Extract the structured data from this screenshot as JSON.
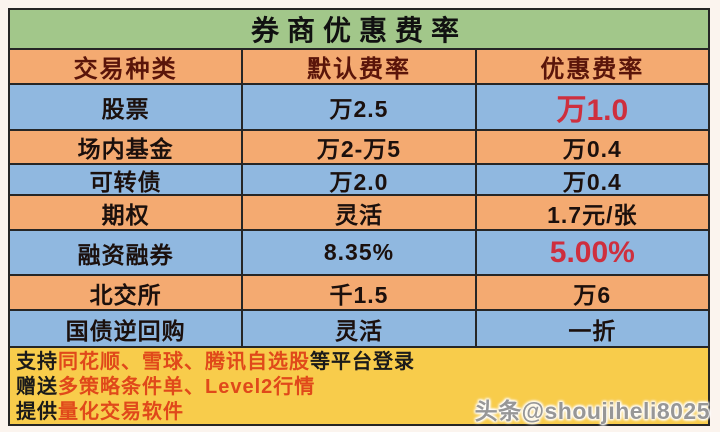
{
  "title": "券商优惠费率",
  "chart_data": {
    "type": "table",
    "title": "券商优惠费率",
    "columns": [
      "交易种类",
      "默认费率",
      "优惠费率"
    ],
    "rows": [
      [
        "股票",
        "万2.5",
        "万1.0"
      ],
      [
        "场内基金",
        "万2-万5",
        "万0.4"
      ],
      [
        "可转债",
        "万2.0",
        "万0.4"
      ],
      [
        "期权",
        "灵活",
        "1.7元/张"
      ],
      [
        "融资融券",
        "8.35%",
        "5.00%"
      ],
      [
        "北交所",
        "千1.5",
        "万6"
      ],
      [
        "国债逆回购",
        "灵活",
        "一折"
      ]
    ],
    "highlighted_cells": [
      "股票 优惠费率 万1.0",
      "融资融券 优惠费率 5.00%"
    ],
    "layout": "title row green, header row orange, data rows alternate blue/orange, footer yellow"
  },
  "footer": {
    "lines": [
      {
        "prefix": "支持",
        "highlight": "同花顺、雪球、腾讯自选股",
        "suffix": "等平台登录"
      },
      {
        "prefix": "赠送",
        "highlight": "多策略条件单、Level2行情",
        "suffix": ""
      },
      {
        "prefix": "提供",
        "highlight": "量化交易软件",
        "suffix": ""
      }
    ]
  },
  "watermark": "头条@shoujiheli8025",
  "colors": {
    "title_bg": "#a2c78a",
    "header_bg": "#f4aa71",
    "row_blue_bg": "#90b8e0",
    "row_orange_bg": "#f4aa71",
    "footer_bg": "#f8cc4b",
    "header_text": "#5a150a",
    "highlight_red": "#ce2f3e",
    "footer_red": "#e0491a",
    "border": "#262626"
  }
}
